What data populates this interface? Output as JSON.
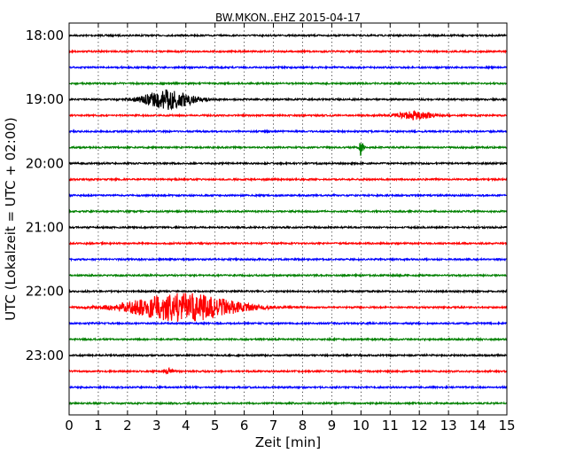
{
  "chart_data": {
    "type": "line",
    "title": "BW.MKON..EHZ 2015-04-17",
    "xlabel": "Zeit  [min]",
    "ylabel": "UTC (Lokalzeit = UTC + 02:00)",
    "xlim": [
      0,
      15
    ],
    "x_ticks": [
      "0",
      "1",
      "2",
      "3",
      "4",
      "5",
      "6",
      "7",
      "8",
      "9",
      "10",
      "11",
      "12",
      "13",
      "14",
      "15"
    ],
    "y_tick_labels": [
      "18:00",
      "19:00",
      "20:00",
      "21:00",
      "22:00",
      "23:00"
    ],
    "grid": "vertical dotted",
    "trace_colors": [
      "#000000",
      "#ff0000",
      "#0000ff",
      "#008000"
    ],
    "traces": [
      {
        "start": "18:00",
        "events": []
      },
      {
        "start": "18:15",
        "events": []
      },
      {
        "start": "18:30",
        "events": []
      },
      {
        "start": "18:45",
        "events": []
      },
      {
        "start": "19:00",
        "events": [
          {
            "time_min": 3.4,
            "amplitude": 11,
            "duration_min": 1.5
          }
        ]
      },
      {
        "start": "19:15",
        "events": [
          {
            "time_min": 11.8,
            "amplitude": 4,
            "duration_min": 1.2
          }
        ]
      },
      {
        "start": "19:30",
        "events": []
      },
      {
        "start": "19:45",
        "events": [
          {
            "time_min": 10.0,
            "amplitude": 9,
            "duration_min": 0.15
          }
        ]
      },
      {
        "start": "20:00",
        "events": []
      },
      {
        "start": "20:15",
        "events": []
      },
      {
        "start": "20:30",
        "events": []
      },
      {
        "start": "20:45",
        "events": []
      },
      {
        "start": "21:00",
        "events": []
      },
      {
        "start": "21:15",
        "events": []
      },
      {
        "start": "21:30",
        "events": []
      },
      {
        "start": "21:45",
        "events": []
      },
      {
        "start": "22:00",
        "events": []
      },
      {
        "start": "22:15",
        "events": [
          {
            "time_min": 3.9,
            "amplitude": 16,
            "duration_min": 3.2
          }
        ]
      },
      {
        "start": "22:30",
        "events": []
      },
      {
        "start": "22:45",
        "events": []
      },
      {
        "start": "23:00",
        "events": []
      },
      {
        "start": "23:15",
        "events": [
          {
            "time_min": 3.4,
            "amplitude": 3,
            "duration_min": 0.3
          }
        ]
      },
      {
        "start": "23:30",
        "events": []
      },
      {
        "start": "23:45",
        "events": []
      }
    ]
  }
}
